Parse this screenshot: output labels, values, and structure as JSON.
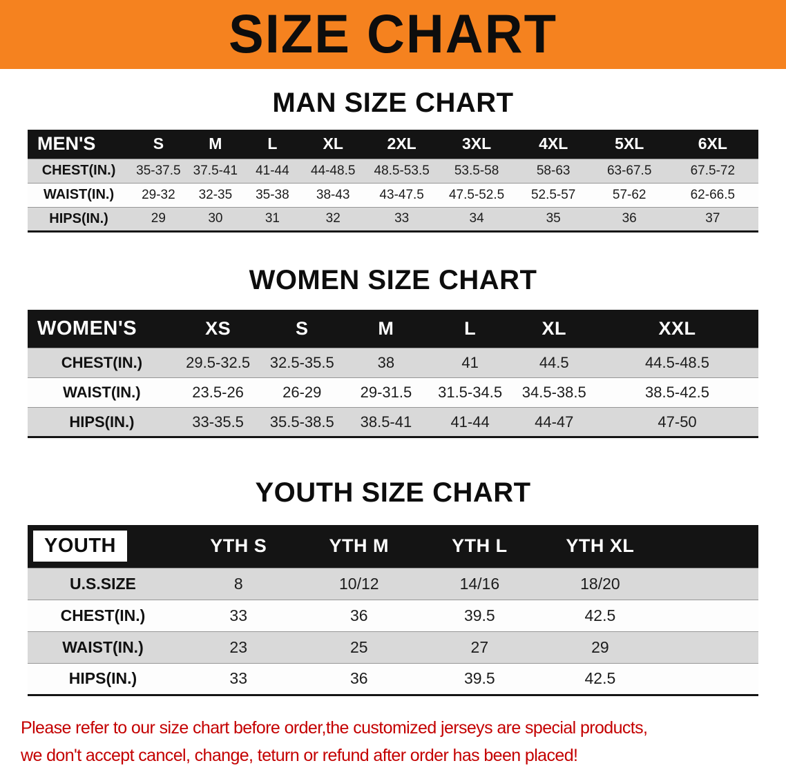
{
  "colors": {
    "banner_orange": "#F5821F",
    "header_black": "#141414",
    "row_gray": "#D9D9D9",
    "footer_red": "#C40000"
  },
  "banner": {
    "title": "SIZE CHART"
  },
  "men": {
    "heading": "MAN SIZE CHART",
    "table": {
      "header": [
        "MEN'S",
        "S",
        "M",
        "L",
        "XL",
        "2XL",
        "3XL",
        "4XL",
        "5XL",
        "6XL"
      ],
      "rows": [
        [
          "CHEST(IN.)",
          "35-37.5",
          "37.5-41",
          "41-44",
          "44-48.5",
          "48.5-53.5",
          "53.5-58",
          "58-63",
          "63-67.5",
          "67.5-72"
        ],
        [
          "WAIST(IN.)",
          "29-32",
          "32-35",
          "35-38",
          "38-43",
          "43-47.5",
          "47.5-52.5",
          "52.5-57",
          "57-62",
          "62-66.5"
        ],
        [
          "HIPS(IN.)",
          "29",
          "30",
          "31",
          "32",
          "33",
          "34",
          "35",
          "36",
          "37"
        ]
      ]
    }
  },
  "women": {
    "heading": "WOMEN SIZE CHART",
    "table": {
      "header": [
        "WOMEN'S",
        "XS",
        "S",
        "M",
        "L",
        "XL",
        "XXL"
      ],
      "rows": [
        [
          "CHEST(IN.)",
          "29.5-32.5",
          "32.5-35.5",
          "38",
          "41",
          "44.5",
          "44.5-48.5"
        ],
        [
          "WAIST(IN.)",
          "23.5-26",
          "26-29",
          "29-31.5",
          "31.5-34.5",
          "34.5-38.5",
          "38.5-42.5"
        ],
        [
          "HIPS(IN.)",
          "33-35.5",
          "35.5-38.5",
          "38.5-41",
          "41-44",
          "44-47",
          "47-50"
        ]
      ]
    }
  },
  "youth": {
    "heading": "YOUTH SIZE CHART",
    "table": {
      "header": [
        "YOUTH",
        "YTH S",
        "YTH M",
        "YTH L",
        "YTH XL"
      ],
      "rows": [
        [
          "U.S.SIZE",
          "8",
          "10/12",
          "14/16",
          "18/20"
        ],
        [
          "CHEST(IN.)",
          "33",
          "36",
          "39.5",
          "42.5"
        ],
        [
          "WAIST(IN.)",
          "23",
          "25",
          "27",
          "29"
        ],
        [
          "HIPS(IN.)",
          "33",
          "36",
          "39.5",
          "42.5"
        ]
      ]
    }
  },
  "footer": {
    "lines": [
      "Please refer to our size chart before order,the customized jerseys are special products,",
      "we don't accept cancel, change, teturn or refund after order has been placed!"
    ]
  }
}
